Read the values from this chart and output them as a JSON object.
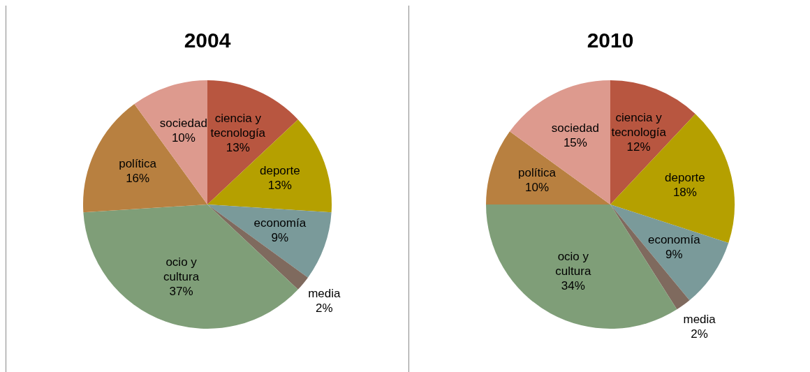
{
  "chart_data": [
    {
      "type": "pie",
      "title": "2004",
      "categories": [
        "ciencia y tecnología",
        "deporte",
        "economía",
        "media",
        "ocio y cultura",
        "política",
        "sociedad"
      ],
      "values": [
        13,
        13,
        9,
        2,
        37,
        16,
        10
      ],
      "value_labels": [
        "13%",
        "13%",
        "9%",
        "2%",
        "37%",
        "16%",
        "10%"
      ],
      "colors": [
        "#b85640",
        "#b5a000",
        "#7a9a9a",
        "#7f6a5e",
        "#7f9e78",
        "#b88040",
        "#dd9a8e"
      ],
      "legend": false
    },
    {
      "type": "pie",
      "title": "2010",
      "categories": [
        "ciencia y tecnología",
        "deporte",
        "economía",
        "media",
        "ocio y cultura",
        "política",
        "sociedad"
      ],
      "values": [
        12,
        18,
        9,
        2,
        34,
        10,
        15
      ],
      "value_labels": [
        "12%",
        "18%",
        "9%",
        "2%",
        "34%",
        "10%",
        "15%"
      ],
      "colors": [
        "#b85640",
        "#b5a000",
        "#7a9a9a",
        "#7f6a5e",
        "#7f9e78",
        "#b88040",
        "#dd9a8e"
      ],
      "legend": false
    }
  ]
}
